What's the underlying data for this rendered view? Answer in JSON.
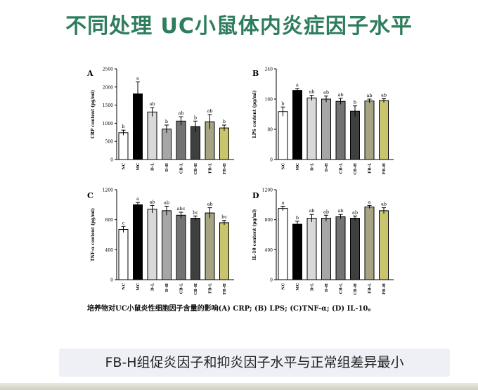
{
  "slide": {
    "title": "不同处理 UC小鼠体内炎症因子水平",
    "caption": "培养物对UC小鼠炎性细胞因子含量的影响(A) CRP; (B) LPS; (C)TNF-α; (D) IL-10。",
    "conclusion": "FB-H组促炎因子和抑炎因子水平与正常组差异最小"
  },
  "colors": {
    "title": "#2e7d5e",
    "bars": [
      "#ffffff",
      "#000000",
      "#d9d9d9",
      "#a6a6a6",
      "#737373",
      "#3f3f3f",
      "#a6a482",
      "#c8c56e"
    ]
  },
  "chart_data": [
    {
      "type": "bar",
      "panel": "A",
      "categories": [
        "NC",
        "MC",
        "D-L",
        "D-H",
        "CB-L",
        "CB-H",
        "FB-L",
        "FB-H"
      ],
      "values": [
        740,
        1810,
        1310,
        840,
        1060,
        910,
        1040,
        870
      ],
      "errors": [
        70,
        330,
        120,
        110,
        120,
        150,
        200,
        80
      ],
      "letters": [
        "b",
        "a",
        "ab",
        "b",
        "ab",
        "b",
        "ab",
        "b"
      ],
      "ylabel": "CRP content (pg/ml)",
      "ylim": [
        0,
        2500
      ],
      "yticks": [
        0,
        500,
        1000,
        1500,
        2000,
        2500
      ]
    },
    {
      "type": "bar",
      "panel": "B",
      "categories": [
        "NC",
        "MC",
        "D-L",
        "D-H",
        "CB-L",
        "CB-H",
        "FB-L",
        "FB-H"
      ],
      "values": [
        127,
        183,
        163,
        160,
        154,
        128,
        155,
        156
      ],
      "errors": [
        12,
        5,
        7,
        8,
        8,
        14,
        5,
        5
      ],
      "letters": [
        "b",
        "a",
        "ab",
        "ab",
        "ab",
        "b",
        "ab",
        "ab"
      ],
      "ylabel": "LPS content (pg/ml)",
      "ylim": [
        0,
        240
      ],
      "yticks": [
        0,
        80,
        160,
        240
      ]
    },
    {
      "type": "bar",
      "panel": "C",
      "categories": [
        "NC",
        "MC",
        "D-L",
        "D-H",
        "CB-L",
        "CB-H",
        "FB-L",
        "FB-H"
      ],
      "values": [
        670,
        1000,
        940,
        920,
        860,
        820,
        890,
        760
      ],
      "errors": [
        40,
        30,
        50,
        60,
        40,
        30,
        70,
        30
      ],
      "letters": [
        "c",
        "a",
        "ab",
        "ab",
        "abc",
        "bc",
        "ab",
        "bc"
      ],
      "ylabel": "TNF-α content (pg/ml)",
      "ylim": [
        0,
        1200
      ],
      "yticks": [
        0,
        400,
        800,
        1200
      ]
    },
    {
      "type": "bar",
      "panel": "D",
      "categories": [
        "NC",
        "MC",
        "D-L",
        "D-H",
        "CB-L",
        "CB-H",
        "FB-L",
        "FB-H"
      ],
      "values": [
        950,
        740,
        820,
        820,
        840,
        820,
        970,
        920
      ],
      "errors": [
        30,
        40,
        50,
        40,
        30,
        30,
        20,
        40
      ],
      "letters": [
        "a",
        "b",
        "ab",
        "ab",
        "ab",
        "ab",
        "a",
        "ab"
      ],
      "ylabel": "IL-10 content (pg/ml)",
      "ylim": [
        0,
        1200
      ],
      "yticks": [
        0,
        400,
        800,
        1200
      ]
    }
  ]
}
